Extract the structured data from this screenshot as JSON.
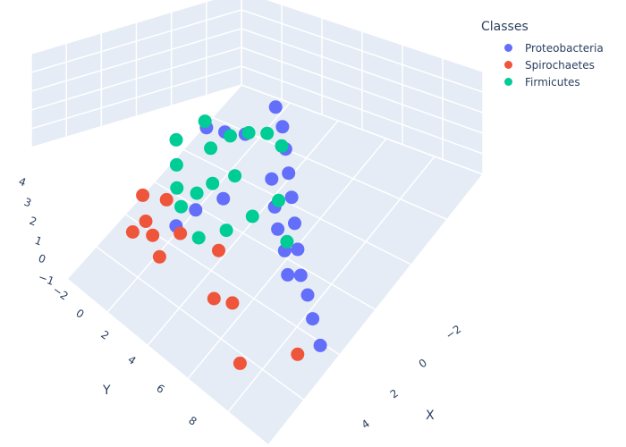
{
  "chart_data": {
    "type": "scatter3d",
    "title": "",
    "legend": {
      "title": "Classes",
      "placement": "top-right"
    },
    "axes": {
      "x": {
        "label": "X",
        "ticks": [
          "−2",
          "0",
          "2",
          "4"
        ]
      },
      "y": {
        "label": "Y",
        "ticks": [
          "−2",
          "0",
          "2",
          "4",
          "6",
          "8"
        ]
      },
      "z": {
        "label": "",
        "ticks": [
          "−1",
          "0",
          "1",
          "2",
          "3",
          "4"
        ]
      }
    },
    "colors": {
      "Proteobacteria": "#636efa",
      "Spirochaetes": "#ef553b",
      "Firmicutes": "#00cc96"
    },
    "series": [
      {
        "name": "Proteobacteria",
        "points": [
          [
            0.2,
            -0.8,
            2.6
          ],
          [
            0.6,
            -0.6,
            2.4
          ],
          [
            1.0,
            -0.2,
            2.3
          ],
          [
            1.4,
            0.2,
            2.1
          ],
          [
            1.8,
            0.6,
            1.9
          ],
          [
            2.2,
            1.0,
            1.6
          ],
          [
            2.6,
            1.4,
            1.3
          ],
          [
            3.0,
            1.8,
            1.0
          ],
          [
            3.4,
            2.0,
            0.8
          ],
          [
            3.8,
            2.3,
            0.5
          ],
          [
            4.3,
            2.6,
            0.2
          ],
          [
            1.2,
            0.8,
            2.2
          ],
          [
            2.0,
            1.6,
            1.7
          ],
          [
            2.8,
            2.2,
            1.2
          ],
          [
            0.0,
            0.5,
            2.4
          ],
          [
            -0.4,
            1.0,
            2.5
          ],
          [
            -0.8,
            1.4,
            2.6
          ],
          [
            0.4,
            2.2,
            1.6
          ],
          [
            -0.2,
            2.8,
            0.8
          ],
          [
            -0.5,
            3.4,
            0.2
          ],
          [
            1.6,
            1.2,
            1.8
          ],
          [
            2.4,
            1.8,
            1.4
          ]
        ]
      },
      {
        "name": "Spirochaetes",
        "points": [
          [
            -1.6,
            3.6,
            0.4
          ],
          [
            -1.2,
            4.0,
            0.1
          ],
          [
            -0.8,
            4.2,
            0.2
          ],
          [
            -0.4,
            4.4,
            -0.1
          ],
          [
            -1.4,
            4.4,
            -0.3
          ],
          [
            -0.2,
            3.6,
            0.5
          ],
          [
            1.2,
            3.8,
            -0.6
          ],
          [
            1.6,
            3.4,
            -0.7
          ],
          [
            2.6,
            4.4,
            -1.2
          ],
          [
            3.6,
            2.8,
            -1.1
          ],
          [
            0.8,
            3.0,
            0.4
          ],
          [
            -1.0,
            3.2,
            0.6
          ]
        ]
      },
      {
        "name": "Firmicutes",
        "points": [
          [
            -1.5,
            2.0,
            1.6
          ],
          [
            -1.2,
            2.4,
            1.2
          ],
          [
            -0.9,
            2.8,
            0.9
          ],
          [
            -0.6,
            3.0,
            0.6
          ],
          [
            -0.3,
            2.6,
            1.3
          ],
          [
            0.0,
            2.2,
            1.8
          ],
          [
            -0.5,
            1.6,
            2.2
          ],
          [
            -0.2,
            1.0,
            2.6
          ],
          [
            0.2,
            0.6,
            2.9
          ],
          [
            0.6,
            0.2,
            3.0
          ],
          [
            1.0,
            0.0,
            2.7
          ],
          [
            0.4,
            1.6,
            2.1
          ],
          [
            0.8,
            2.6,
            1.0
          ],
          [
            0.2,
            3.2,
            0.4
          ],
          [
            1.6,
            1.0,
            1.9
          ],
          [
            2.2,
            1.4,
            1.1
          ],
          [
            1.2,
            1.8,
            1.4
          ],
          [
            -1.0,
            1.2,
            2.4
          ]
        ]
      }
    ]
  }
}
